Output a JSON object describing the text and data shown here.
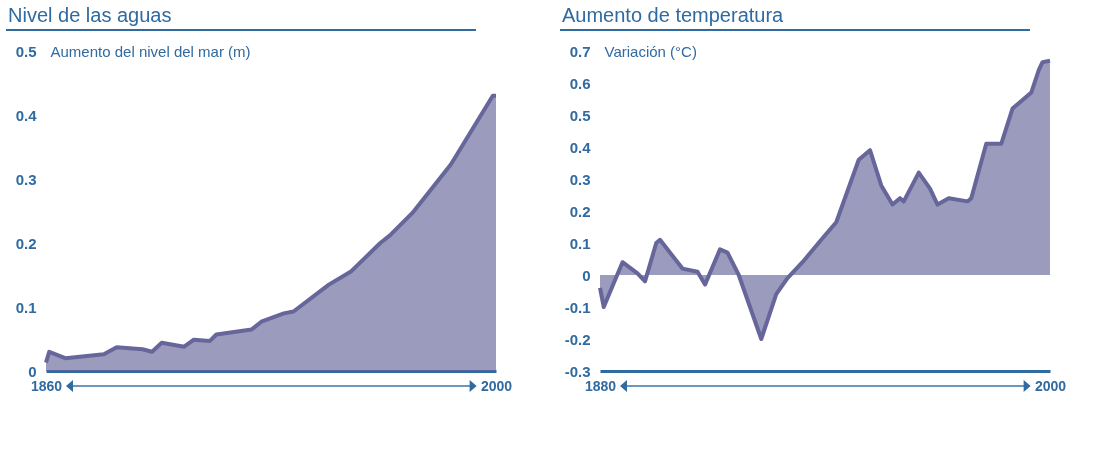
{
  "chart_data": [
    {
      "type": "area",
      "title": "Nivel de las aguas",
      "ylabel": "Aumento del nivel del mar (m)",
      "color": "#66669a",
      "xlim": [
        1860,
        2000
      ],
      "xticks": [
        1860,
        2000
      ],
      "ylim": [
        0,
        0.5
      ],
      "yticks": [
        0,
        0.1,
        0.2,
        0.3,
        0.4,
        0.5
      ],
      "x": [
        1860,
        1861,
        1866,
        1878,
        1882,
        1890,
        1893,
        1896,
        1903,
        1906,
        1911,
        1913,
        1924,
        1927,
        1934,
        1937,
        1948,
        1955,
        1964,
        1967,
        1974,
        1986,
        1999,
        2000
      ],
      "values": [
        0.013,
        0.03,
        0.02,
        0.026,
        0.037,
        0.034,
        0.03,
        0.044,
        0.038,
        0.049,
        0.047,
        0.057,
        0.065,
        0.077,
        0.09,
        0.093,
        0.135,
        0.156,
        0.2,
        0.212,
        0.247,
        0.323,
        0.43,
        0.43
      ]
    },
    {
      "type": "area",
      "title": "Aumento de temperatura",
      "ylabel": "Variación (°C)",
      "color": "#66669a",
      "xlim": [
        1880,
        2000
      ],
      "xticks": [
        1880,
        2000
      ],
      "ylim": [
        -0.3,
        0.7
      ],
      "yticks": [
        -0.3,
        -0.2,
        -0.1,
        0,
        0.1,
        0.2,
        0.3,
        0.4,
        0.5,
        0.6,
        0.7
      ],
      "x": [
        1880,
        1881,
        1886,
        1890,
        1892,
        1895,
        1896,
        1900,
        1902,
        1906,
        1908,
        1912,
        1914,
        1917,
        1920,
        1923,
        1927,
        1930,
        1934,
        1939,
        1943,
        1949,
        1952,
        1955,
        1958,
        1960,
        1961,
        1965,
        1968,
        1970,
        1973,
        1978,
        1979,
        1983,
        1987,
        1990,
        1995,
        1997,
        1998,
        2000
      ],
      "values": [
        -0.04,
        -0.1,
        0.04,
        0.005,
        -0.02,
        0.1,
        0.11,
        0.05,
        0.02,
        0.01,
        -0.03,
        0.08,
        0.07,
        0,
        -0.1,
        -0.2,
        -0.06,
        -0.01,
        0.04,
        0.11,
        0.165,
        0.36,
        0.39,
        0.28,
        0.22,
        0.24,
        0.23,
        0.32,
        0.27,
        0.22,
        0.24,
        0.23,
        0.24,
        0.41,
        0.41,
        0.52,
        0.57,
        0.64,
        0.665,
        0.67
      ]
    }
  ]
}
